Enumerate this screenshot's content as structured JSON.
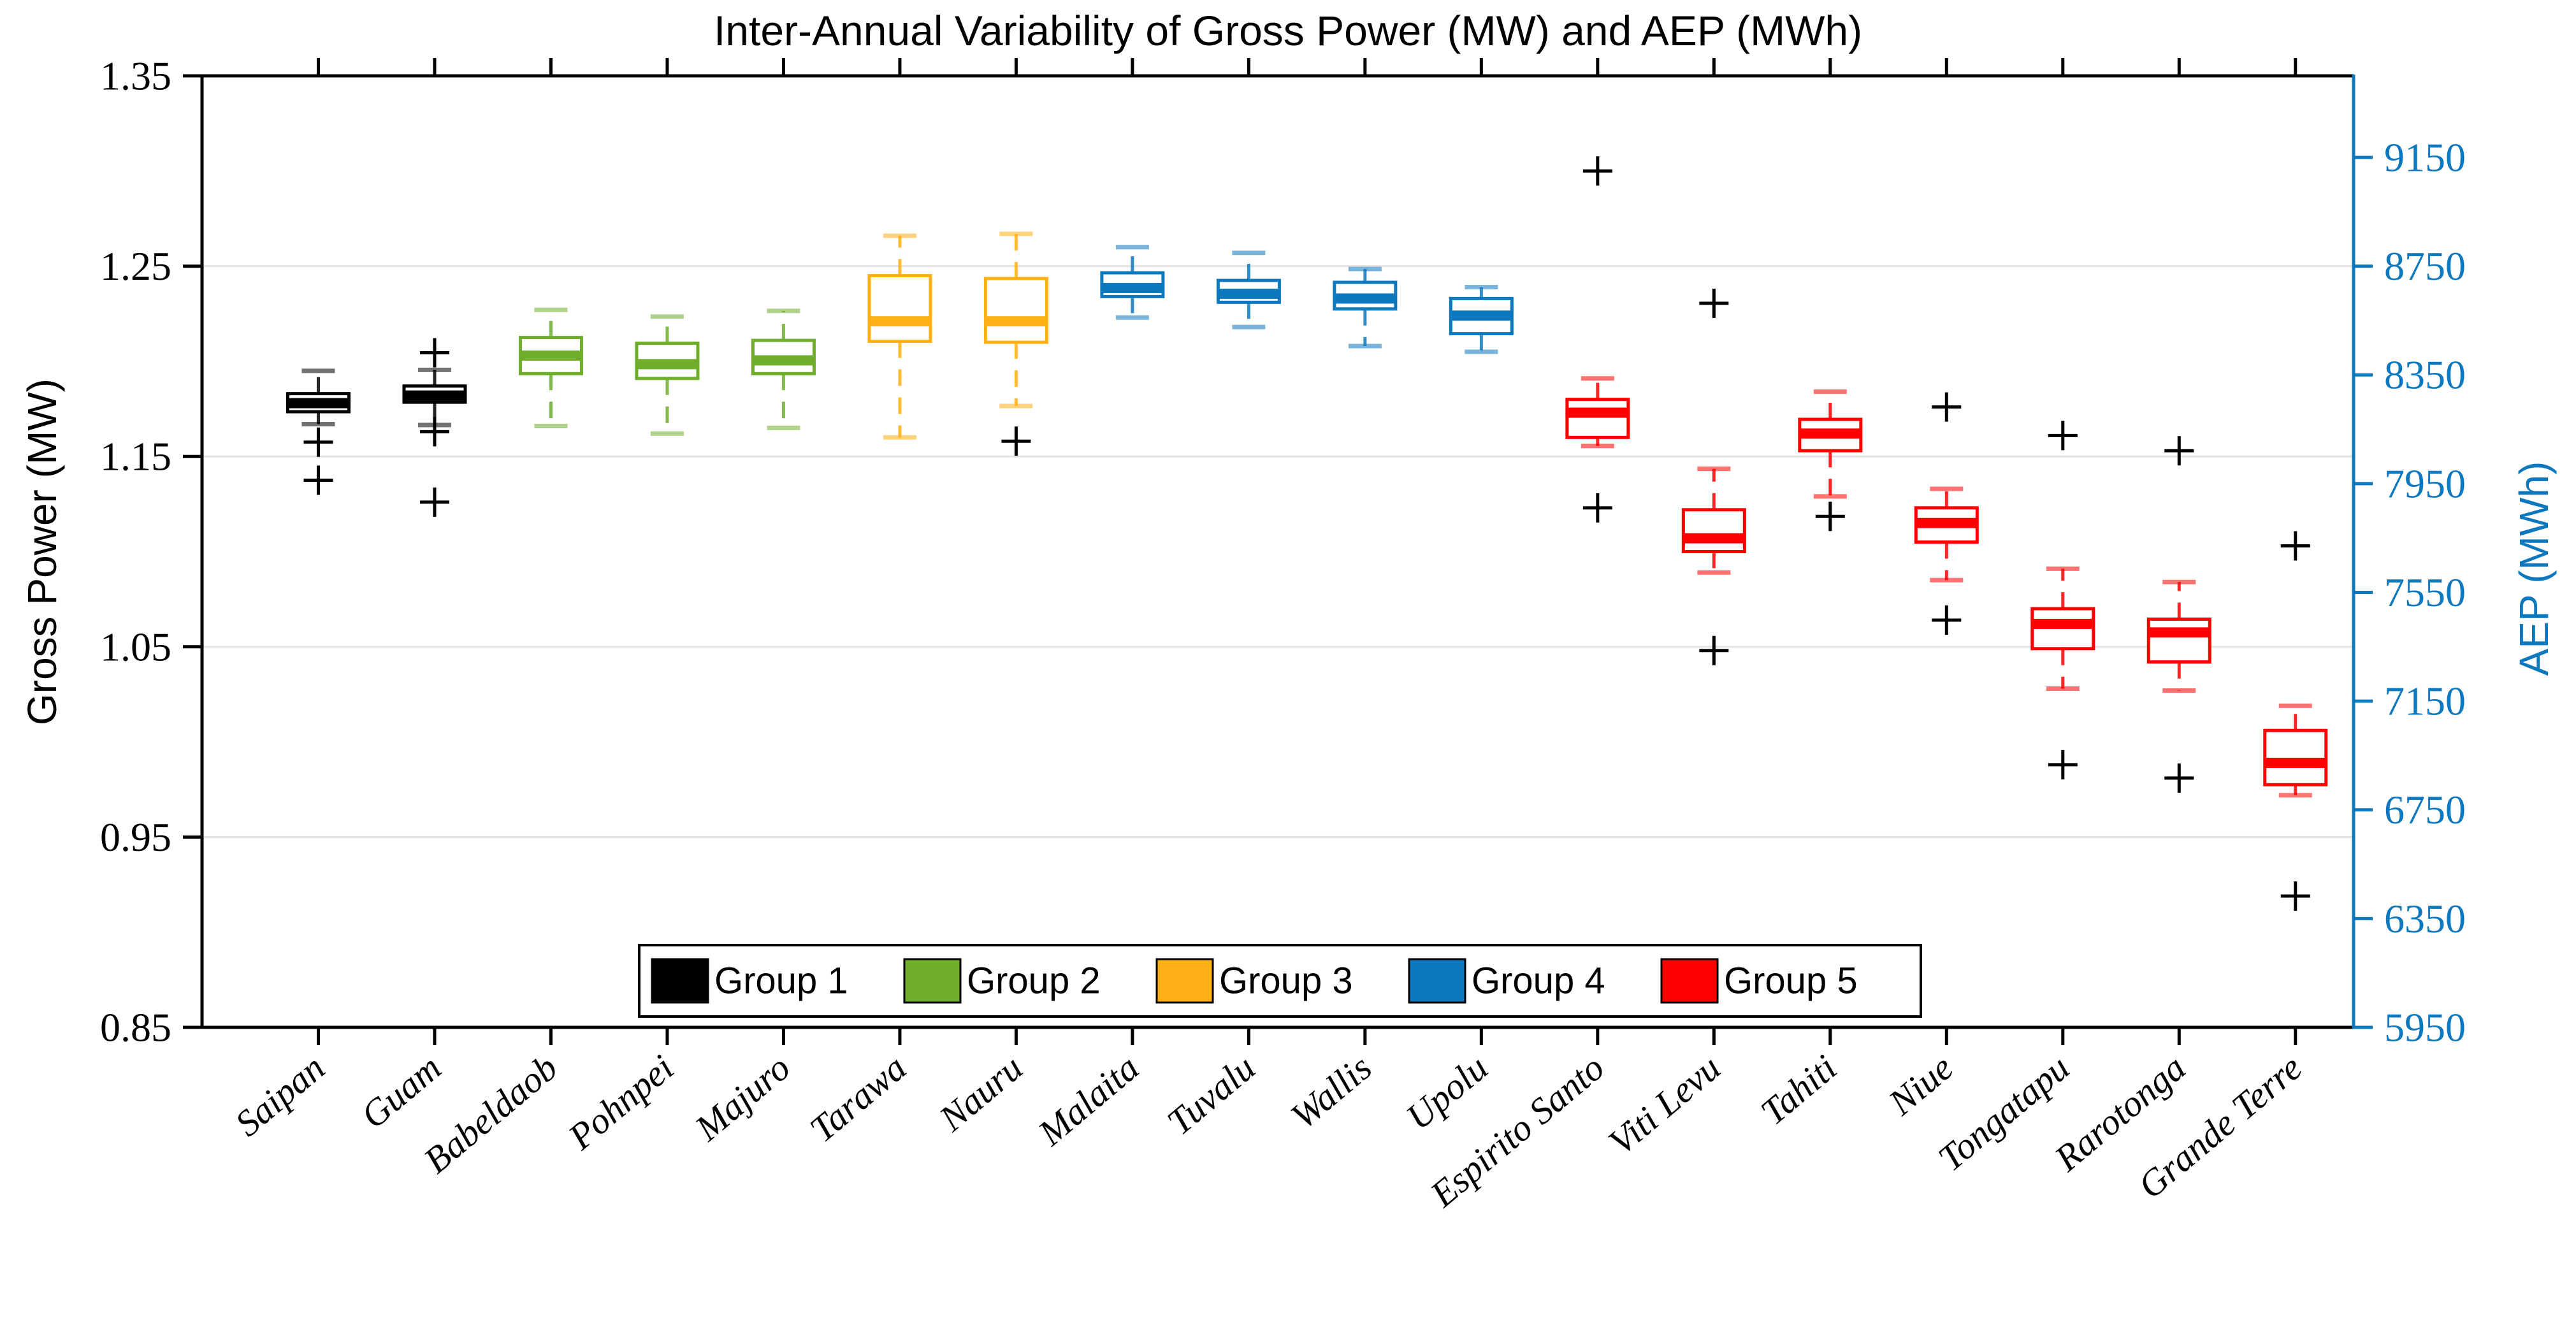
{
  "chart_data": {
    "type": "boxplot",
    "title": "Inter-Annual Variability of Gross Power (MW) and AEP (MWh)",
    "ylabel_left": "Gross Power (MW)",
    "ylabel_right": "AEP (MWh)",
    "ylim_left": [
      0.85,
      1.35
    ],
    "ylim_right": [
      5950,
      9450
    ],
    "aep_per_mw": 7000,
    "grid_on": true,
    "grid_values": [
      1.25,
      1.15,
      1.05,
      0.95
    ],
    "left_ticks": [
      {
        "v": 1.35,
        "label": "1.35"
      },
      {
        "v": 1.25,
        "label": "1.25"
      },
      {
        "v": 1.15,
        "label": "1.15"
      },
      {
        "v": 1.05,
        "label": "1.05"
      },
      {
        "v": 0.95,
        "label": "0.95"
      },
      {
        "v": 0.85,
        "label": "0.85"
      }
    ],
    "right_ticks": [
      {
        "v": 9150,
        "label": "9150"
      },
      {
        "v": 8750,
        "label": "8750"
      },
      {
        "v": 8350,
        "label": "8350"
      },
      {
        "v": 7950,
        "label": "7950"
      },
      {
        "v": 7550,
        "label": "7550"
      },
      {
        "v": 7150,
        "label": "7150"
      },
      {
        "v": 6750,
        "label": "6750"
      },
      {
        "v": 6350,
        "label": "6350"
      },
      {
        "v": 5950,
        "label": "5950"
      }
    ],
    "legend": [
      {
        "label": "Group 1",
        "color": "#000000"
      },
      {
        "label": "Group 2",
        "color": "#6FAD2D"
      },
      {
        "label": "Group 3",
        "color": "#FFB014"
      },
      {
        "label": "Group 4",
        "color": "#0E78BE"
      },
      {
        "label": "Group 5",
        "color": "#FF0000"
      }
    ],
    "legend_position": "south-center-inside",
    "boxes": [
      {
        "label": "Saipan",
        "group": 0,
        "whislo": 1.167,
        "q1": 1.1735,
        "med": 1.178,
        "q3": 1.183,
        "whishi": 1.195,
        "outliers": [
          1.1575,
          1.1375
        ]
      },
      {
        "label": "Guam",
        "group": 0,
        "whislo": 1.1665,
        "q1": 1.1785,
        "med": 1.182,
        "q3": 1.187,
        "whishi": 1.1955,
        "outliers": [
          1.2045,
          1.163,
          1.126
        ]
      },
      {
        "label": "Babeldaob",
        "group": 1,
        "whislo": 1.166,
        "q1": 1.1935,
        "med": 1.203,
        "q3": 1.2125,
        "whishi": 1.227,
        "outliers": []
      },
      {
        "label": "Pohnpei",
        "group": 1,
        "whislo": 1.162,
        "q1": 1.191,
        "med": 1.1985,
        "q3": 1.2095,
        "whishi": 1.2235,
        "outliers": []
      },
      {
        "label": "Majuro",
        "group": 1,
        "whislo": 1.165,
        "q1": 1.1935,
        "med": 1.2005,
        "q3": 1.211,
        "whishi": 1.2265,
        "outliers": []
      },
      {
        "label": "Tarawa",
        "group": 2,
        "whislo": 1.16,
        "q1": 1.2105,
        "med": 1.221,
        "q3": 1.245,
        "whishi": 1.266,
        "outliers": []
      },
      {
        "label": "Nauru",
        "group": 2,
        "whislo": 1.1765,
        "q1": 1.21,
        "med": 1.221,
        "q3": 1.2435,
        "whishi": 1.267,
        "outliers": [
          1.158
        ]
      },
      {
        "label": "Malaita",
        "group": 3,
        "whislo": 1.223,
        "q1": 1.234,
        "med": 1.2385,
        "q3": 1.2465,
        "whishi": 1.26,
        "outliers": []
      },
      {
        "label": "Tuvalu",
        "group": 3,
        "whislo": 1.218,
        "q1": 1.231,
        "med": 1.2355,
        "q3": 1.2425,
        "whishi": 1.257,
        "outliers": []
      },
      {
        "label": "Wallis",
        "group": 3,
        "whislo": 1.208,
        "q1": 1.2275,
        "med": 1.233,
        "q3": 1.2415,
        "whishi": 1.2485,
        "outliers": []
      },
      {
        "label": "Upolu",
        "group": 3,
        "whislo": 1.205,
        "q1": 1.2145,
        "med": 1.224,
        "q3": 1.233,
        "whishi": 1.239,
        "outliers": []
      },
      {
        "label": "Espirito Santo",
        "group": 4,
        "whislo": 1.1555,
        "q1": 1.16,
        "med": 1.173,
        "q3": 1.18,
        "whishi": 1.191,
        "outliers": [
          1.3,
          1.123
        ]
      },
      {
        "label": "Viti Levu",
        "group": 4,
        "whislo": 1.089,
        "q1": 1.1,
        "med": 1.107,
        "q3": 1.122,
        "whishi": 1.1435,
        "outliers": [
          1.2305,
          1.048
        ]
      },
      {
        "label": "Tahiti",
        "group": 4,
        "whislo": 1.129,
        "q1": 1.153,
        "med": 1.162,
        "q3": 1.1695,
        "whishi": 1.184,
        "outliers": [
          1.1185
        ]
      },
      {
        "label": "Niue",
        "group": 4,
        "whislo": 1.085,
        "q1": 1.105,
        "med": 1.115,
        "q3": 1.123,
        "whishi": 1.133,
        "outliers": [
          1.176,
          1.064
        ]
      },
      {
        "label": "Tongatapu",
        "group": 4,
        "whislo": 1.028,
        "q1": 1.049,
        "med": 1.062,
        "q3": 1.07,
        "whishi": 1.091,
        "outliers": [
          1.161,
          0.988
        ]
      },
      {
        "label": "Rarotonga",
        "group": 4,
        "whislo": 1.027,
        "q1": 1.042,
        "med": 1.0575,
        "q3": 1.0645,
        "whishi": 1.084,
        "outliers": [
          1.153,
          0.981
        ]
      },
      {
        "label": "Grande Terre",
        "group": 4,
        "whislo": 0.972,
        "q1": 0.9775,
        "med": 0.989,
        "q3": 1.006,
        "whishi": 1.019,
        "outliers": [
          1.103,
          0.919
        ]
      }
    ],
    "outlier_marker": "plus",
    "outlier_color": "#000000"
  },
  "colors": {
    "axis_left": "#000000",
    "axis_right": "#0E78BE",
    "grid": "#E3E3E3",
    "background": "#FFFFFF",
    "text": "#000000"
  }
}
